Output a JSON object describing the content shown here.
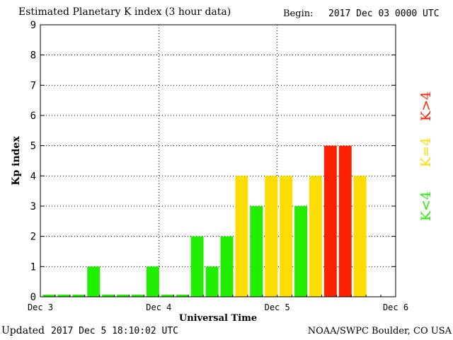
{
  "header": {
    "title": "Estimated Planetary K index (3 hour data)",
    "begin_label": "Begin:",
    "begin_value": "2017 Dec 03 0000 UTC"
  },
  "footer": {
    "updated_label": "Updated",
    "updated_value": "2017 Dec  5 18:10:02 UTC",
    "credit": "NOAA/SWPC Boulder, CO USA"
  },
  "legend": [
    {
      "label": "K>4",
      "color": "#ff2200"
    },
    {
      "label": "K=4",
      "color": "#ffdd00"
    },
    {
      "label": "K<4",
      "color": "#22ee00"
    }
  ],
  "chart_data": {
    "type": "bar",
    "title": "Estimated Planetary K index (3 hour data)",
    "xlabel": "Universal Time",
    "ylabel": "Kp index",
    "ylim": [
      0,
      9
    ],
    "yticks": [
      0,
      1,
      2,
      3,
      4,
      5,
      6,
      7,
      8,
      9
    ],
    "xticks": [
      "Dec 3",
      "Dec 4",
      "Dec 5",
      "Dec 6"
    ],
    "bins_per_day": 8,
    "grid": true,
    "colors": {
      "below4": "#22ee00",
      "eq4": "#ffdd00",
      "above4": "#ff2200"
    },
    "values": [
      0,
      0,
      0,
      1,
      0,
      0,
      0,
      1,
      0,
      0,
      2,
      1,
      2,
      4,
      3,
      4,
      4,
      3,
      4,
      5,
      5,
      4
    ]
  }
}
